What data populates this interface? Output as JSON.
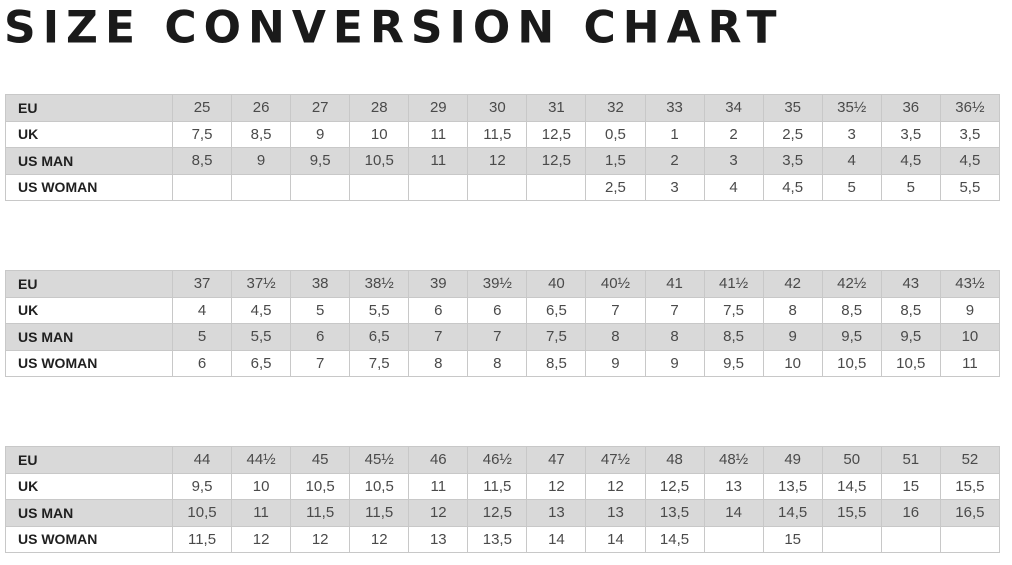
{
  "title": "SIZE CONVERSION CHART",
  "colors": {
    "shaded_row": "#d9d9d9",
    "border": "#c8c8c8"
  },
  "tables": [
    {
      "rows": [
        {
          "label": "EU",
          "values": [
            "25",
            "26",
            "27",
            "28",
            "29",
            "30",
            "31",
            "32",
            "33",
            "34",
            "35",
            "35½",
            "36",
            "36½"
          ]
        },
        {
          "label": "UK",
          "values": [
            "7,5",
            "8,5",
            "9",
            "10",
            "11",
            "11,5",
            "12,5",
            "0,5",
            "1",
            "2",
            "2,5",
            "3",
            "3,5",
            "3,5"
          ]
        },
        {
          "label": "US MAN",
          "values": [
            "8,5",
            "9",
            "9,5",
            "10,5",
            "11",
            "12",
            "12,5",
            "1,5",
            "2",
            "3",
            "3,5",
            "4",
            "4,5",
            "4,5"
          ]
        },
        {
          "label": "US WOMAN",
          "values": [
            "",
            "",
            "",
            "",
            "",
            "",
            "",
            "2,5",
            "3",
            "4",
            "4,5",
            "5",
            "5",
            "5,5"
          ]
        }
      ]
    },
    {
      "rows": [
        {
          "label": "EU",
          "values": [
            "37",
            "37½",
            "38",
            "38½",
            "39",
            "39½",
            "40",
            "40½",
            "41",
            "41½",
            "42",
            "42½",
            "43",
            "43½"
          ]
        },
        {
          "label": "UK",
          "values": [
            "4",
            "4,5",
            "5",
            "5,5",
            "6",
            "6",
            "6,5",
            "7",
            "7",
            "7,5",
            "8",
            "8,5",
            "8,5",
            "9"
          ]
        },
        {
          "label": "US MAN",
          "values": [
            "5",
            "5,5",
            "6",
            "6,5",
            "7",
            "7",
            "7,5",
            "8",
            "8",
            "8,5",
            "9",
            "9,5",
            "9,5",
            "10"
          ]
        },
        {
          "label": "US WOMAN",
          "values": [
            "6",
            "6,5",
            "7",
            "7,5",
            "8",
            "8",
            "8,5",
            "9",
            "9",
            "9,5",
            "10",
            "10,5",
            "10,5",
            "11"
          ]
        }
      ]
    },
    {
      "rows": [
        {
          "label": "EU",
          "values": [
            "44",
            "44½",
            "45",
            "45½",
            "46",
            "46½",
            "47",
            "47½",
            "48",
            "48½",
            "49",
            "50",
            "51",
            "52"
          ]
        },
        {
          "label": "UK",
          "values": [
            "9,5",
            "10",
            "10,5",
            "10,5",
            "11",
            "11,5",
            "12",
            "12",
            "12,5",
            "13",
            "13,5",
            "14,5",
            "15",
            "15,5"
          ]
        },
        {
          "label": "US MAN",
          "values": [
            "10,5",
            "11",
            "11,5",
            "11,5",
            "12",
            "12,5",
            "13",
            "13",
            "13,5",
            "14",
            "14,5",
            "15,5",
            "16",
            "16,5"
          ]
        },
        {
          "label": "US WOMAN",
          "values": [
            "11,5",
            "12",
            "12",
            "12",
            "13",
            "13,5",
            "14",
            "14",
            "14,5",
            "",
            "15",
            "",
            "",
            ""
          ]
        }
      ]
    }
  ]
}
